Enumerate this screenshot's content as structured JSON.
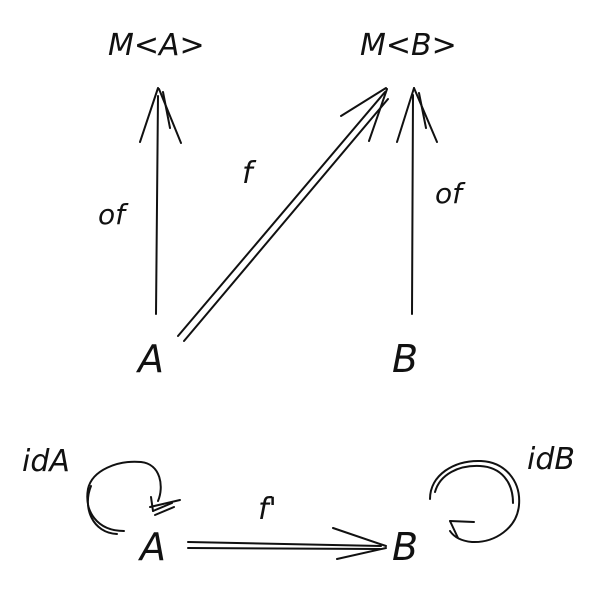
{
  "nodes": {
    "mA": "M<A>",
    "mB": "M<B>",
    "a_top": "A",
    "b_top": "B",
    "a_bottom": "A",
    "b_bottom": "B"
  },
  "edges": {
    "of_left": "of",
    "f": "f",
    "of_right": "of",
    "f_prime": "f'",
    "idA": "idA",
    "idB": "idB"
  }
}
